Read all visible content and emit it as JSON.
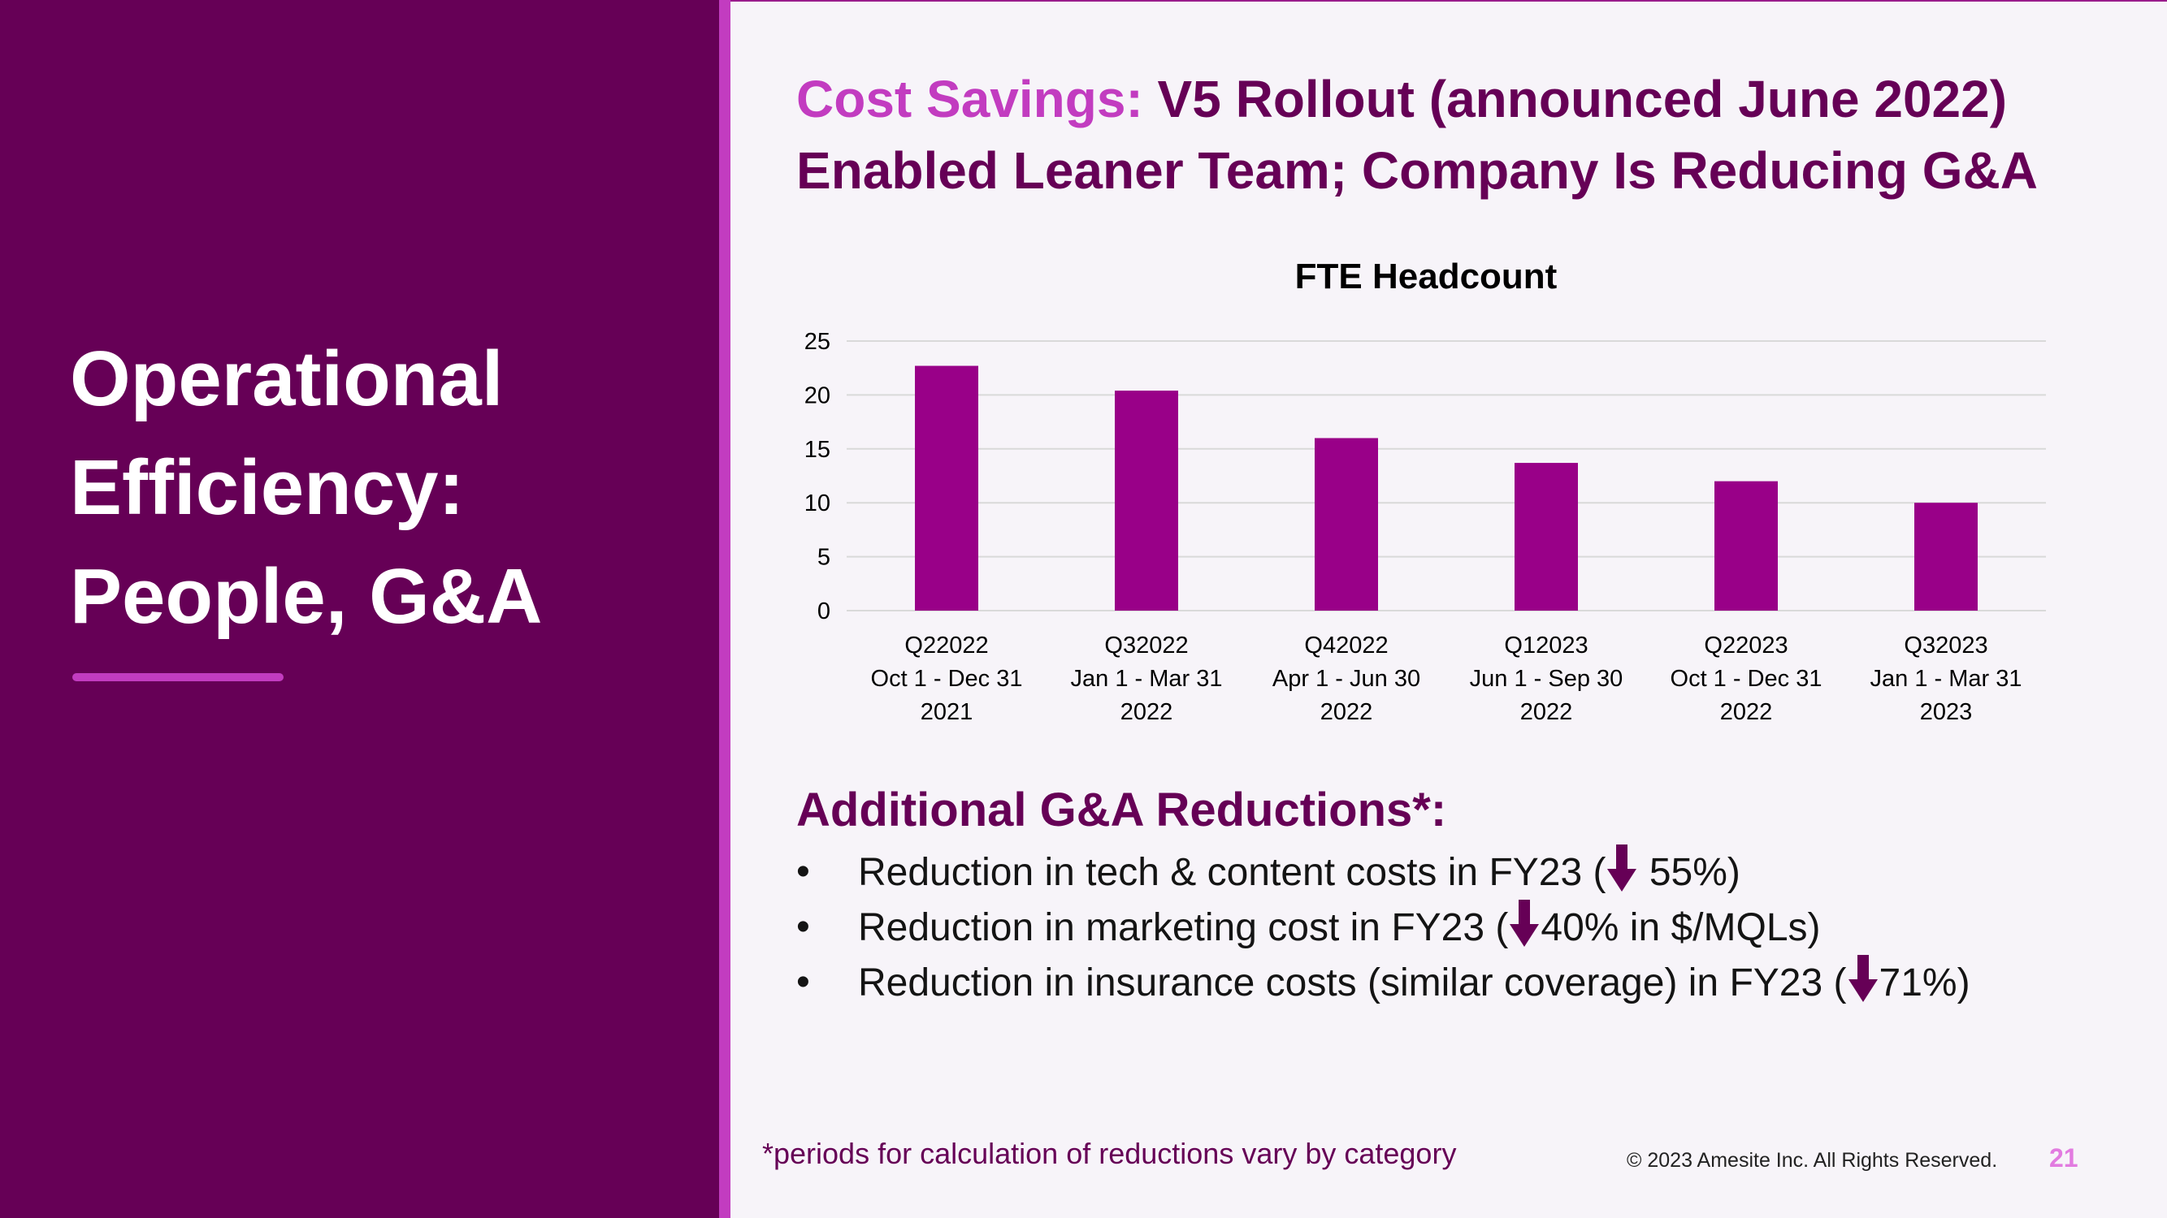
{
  "section": {
    "title_lines": [
      "Operational",
      "Efficiency:",
      "People, G&A"
    ]
  },
  "headline": {
    "lead": "Cost Savings:",
    "line1_rest": "V5 Rollout (announced June 2022)",
    "line2": "Enabled Leaner Team; Company Is Reducing G&A"
  },
  "chart_data": {
    "type": "bar",
    "title": "FTE Headcount",
    "categories": [
      [
        "Q22022",
        "Oct 1 - Dec 31",
        "2021"
      ],
      [
        "Q32022",
        "Jan 1 - Mar 31",
        "2022"
      ],
      [
        "Q42022",
        "Apr 1 - Jun 30",
        "2022"
      ],
      [
        "Q12023",
        "Jun 1 - Sep 30",
        "2022"
      ],
      [
        "Q22023",
        "Oct 1 - Dec 31",
        "2022"
      ],
      [
        "Q32023",
        "Jan 1 - Mar 31",
        "2023"
      ]
    ],
    "values": [
      22.7,
      20.4,
      16,
      13.7,
      12,
      10
    ],
    "ylim": [
      0,
      25
    ],
    "yticks": [
      0,
      5,
      10,
      15,
      20,
      25
    ],
    "xlabel": "",
    "ylabel": "",
    "grid": true,
    "bar_color": "#990088"
  },
  "reductions": {
    "heading": "Additional G&A Reductions*:",
    "bullet_symbol": "•",
    "items": [
      {
        "before": "Reduction in tech & content costs in FY23 (",
        "after": " 55%)"
      },
      {
        "before": "Reduction in marketing cost in FY23 (",
        "after": "40% in $/MQLs)"
      },
      {
        "before": "Reduction in insurance costs (similar coverage) in FY23 (",
        "after": "71%)"
      }
    ],
    "arrow_icon": "down-arrow-icon"
  },
  "footer": {
    "footnote": "*periods for calculation of reductions vary by category",
    "copyright": "© 2023 Amesite Inc. All Rights Reserved.",
    "page_number": "21"
  },
  "colors": {
    "brand_dark": "#660056",
    "brand_accent": "#c23cc0",
    "bar": "#990088",
    "background": "#f7f4f9"
  }
}
